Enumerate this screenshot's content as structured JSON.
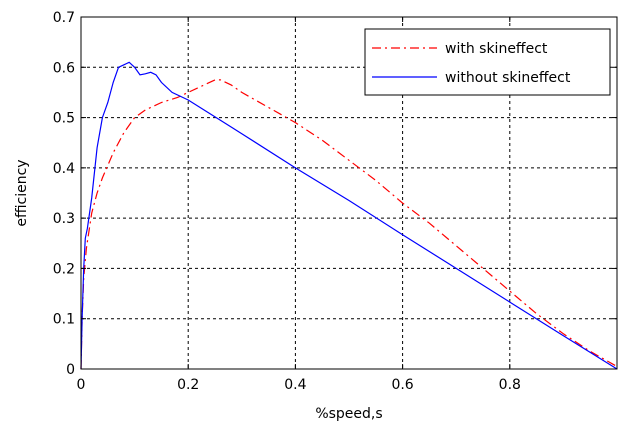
{
  "chart_data": {
    "type": "line",
    "xlabel": "%speed,s",
    "ylabel": "efficiency",
    "xlim": [
      0,
      1
    ],
    "ylim": [
      0,
      0.7
    ],
    "grid": true,
    "legend_position": "top-right",
    "xticks": [
      0,
      0.2,
      0.4,
      0.6,
      0.8
    ],
    "xtick_labels": [
      "0",
      "0.2",
      "0.4",
      "0.6",
      "0.8"
    ],
    "yticks": [
      0,
      0.1,
      0.2,
      0.3,
      0.4,
      0.5,
      0.6,
      0.7
    ],
    "ytick_labels": [
      "0",
      "0.1",
      "0.2",
      "0.3",
      "0.4",
      "0.5",
      "0.6",
      "0.7"
    ],
    "series": [
      {
        "name": "with skineffect",
        "color": "#ff0000",
        "style": "dash-dot",
        "x": [
          0,
          0.002,
          0.005,
          0.01,
          0.02,
          0.03,
          0.04,
          0.06,
          0.08,
          0.1,
          0.12,
          0.15,
          0.18,
          0.2,
          0.23,
          0.25,
          0.26,
          0.28,
          0.3,
          0.35,
          0.4,
          0.45,
          0.5,
          0.55,
          0.6,
          0.65,
          0.7,
          0.75,
          0.8,
          0.85,
          0.9,
          0.95,
          1.0
        ],
        "y": [
          0,
          0.1,
          0.18,
          0.24,
          0.31,
          0.35,
          0.38,
          0.43,
          0.47,
          0.5,
          0.515,
          0.53,
          0.54,
          0.55,
          0.565,
          0.575,
          0.575,
          0.565,
          0.55,
          0.52,
          0.49,
          0.455,
          0.415,
          0.375,
          0.33,
          0.29,
          0.245,
          0.2,
          0.155,
          0.11,
          0.07,
          0.035,
          0.005
        ]
      },
      {
        "name": "without skineffect",
        "color": "#0000ff",
        "style": "solid",
        "x": [
          0,
          0.002,
          0.005,
          0.008,
          0.012,
          0.02,
          0.03,
          0.04,
          0.05,
          0.06,
          0.07,
          0.08,
          0.09,
          0.1,
          0.11,
          0.12,
          0.13,
          0.14,
          0.15,
          0.17,
          0.2,
          0.3,
          0.4,
          0.5,
          0.6,
          0.7,
          0.8,
          0.9,
          1.0
        ],
        "y": [
          0,
          0.1,
          0.2,
          0.26,
          0.28,
          0.34,
          0.44,
          0.5,
          0.53,
          0.57,
          0.6,
          0.605,
          0.61,
          0.6,
          0.585,
          0.587,
          0.59,
          0.585,
          0.57,
          0.55,
          0.535,
          0.468,
          0.4,
          0.335,
          0.267,
          0.2,
          0.133,
          0.066,
          0.0
        ]
      }
    ]
  }
}
